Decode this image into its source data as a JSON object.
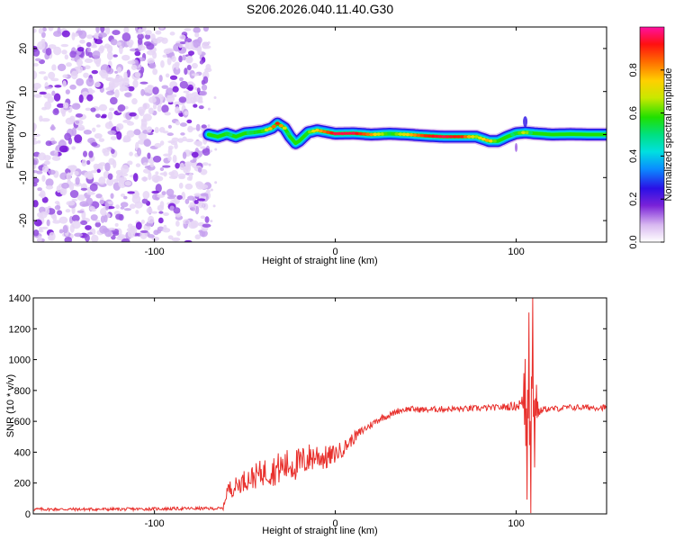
{
  "figure": {
    "title": "S206.2026.040.11.40.G30"
  },
  "chart_data": [
    {
      "type": "heatmap",
      "name": "spectrogram",
      "xlabel": "Height of straight line (km)",
      "ylabel": "Frequency (Hz)",
      "xlim": [
        -167,
        150
      ],
      "ylim": [
        -25,
        25
      ],
      "xticks": [
        -100,
        0,
        100
      ],
      "yticks": [
        -20,
        -10,
        0,
        10,
        20
      ],
      "colorbar": {
        "label": "Normalized spectral amplitude",
        "range": [
          0,
          1
        ],
        "ticks": [
          "0.0",
          "0.2",
          "0.4",
          "0.6",
          "0.8"
        ],
        "colors": [
          "#ffffff",
          "#d8b8f0",
          "#7a22d8",
          "#2a10e6",
          "#0a8cff",
          "#00e0e0",
          "#00e080",
          "#20e000",
          "#c8e800",
          "#ffd000",
          "#ff6a00",
          "#ff1010",
          "#ff10a0"
        ]
      },
      "noise_region_x": [
        -167,
        -70
      ],
      "ridge": {
        "x": [
          -70,
          -65,
          -60,
          -55,
          -50,
          -45,
          -40,
          -35,
          -32,
          -28,
          -25,
          -22,
          -20,
          -15,
          -10,
          0,
          10,
          20,
          30,
          40,
          50,
          60,
          70,
          78,
          85,
          90,
          95,
          100,
          105,
          110,
          120,
          130,
          140,
          150
        ],
        "y": [
          0,
          -0.5,
          0.2,
          -0.5,
          0.3,
          0.5,
          0.8,
          1.5,
          2.6,
          1.5,
          -0.5,
          -2.0,
          -1.5,
          0.5,
          1.0,
          0.2,
          0.3,
          0.0,
          0.2,
          0,
          -0.3,
          -0.5,
          -0.5,
          -0.5,
          -1.5,
          -1.5,
          -0.5,
          0.3,
          0.5,
          0.3,
          0.0,
          0.1,
          0.0,
          0.0
        ],
        "amplitude": [
          0.3,
          0.4,
          0.55,
          0.45,
          0.5,
          0.55,
          0.6,
          0.8,
          0.9,
          0.7,
          0.45,
          0.5,
          0.4,
          0.6,
          0.75,
          0.95,
          0.95,
          0.8,
          0.55,
          0.75,
          0.9,
          0.95,
          0.9,
          0.65,
          0.8,
          0.5,
          0.45,
          0.55,
          0.7,
          0.4,
          0.45,
          0.45,
          0.4,
          0.4
        ]
      }
    },
    {
      "type": "line",
      "name": "snr",
      "xlabel": "Height of straight line (km)",
      "ylabel": "SNR (10 * v/v)",
      "xlim": [
        -167,
        150
      ],
      "ylim": [
        0,
        1400
      ],
      "xticks": [
        -100,
        0,
        100
      ],
      "yticks": [
        0,
        200,
        400,
        600,
        800,
        1000,
        1200,
        1400
      ],
      "color": "#e8302c",
      "series": [
        {
          "name": "SNR envelope",
          "x": [
            -167,
            -120,
            -80,
            -62,
            -60,
            -55,
            -50,
            -45,
            -40,
            -35,
            -30,
            -25,
            -20,
            -15,
            -10,
            -5,
            0,
            5,
            10,
            15,
            20,
            25,
            30,
            35,
            40,
            50,
            60,
            70,
            80,
            90,
            100,
            104,
            105,
            106,
            107,
            108,
            109,
            110,
            111,
            112,
            115,
            120,
            130,
            140,
            150
          ],
          "y": [
            30,
            30,
            35,
            35,
            150,
            180,
            220,
            240,
            270,
            280,
            300,
            320,
            320,
            360,
            380,
            360,
            390,
            430,
            490,
            540,
            580,
            620,
            640,
            670,
            680,
            675,
            680,
            680,
            685,
            690,
            700,
            720,
            800,
            300,
            1100,
            100,
            1300,
            400,
            780,
            650,
            680,
            680,
            690,
            690,
            690
          ],
          "noise": [
            10,
            10,
            10,
            10,
            60,
            60,
            70,
            80,
            90,
            100,
            110,
            110,
            110,
            100,
            90,
            80,
            60,
            50,
            40,
            30,
            25,
            22,
            20,
            20,
            20,
            20,
            20,
            20,
            20,
            20,
            30,
            60,
            80,
            80,
            100,
            100,
            100,
            80,
            40,
            30,
            20,
            20,
            20,
            20,
            20
          ]
        }
      ]
    }
  ]
}
